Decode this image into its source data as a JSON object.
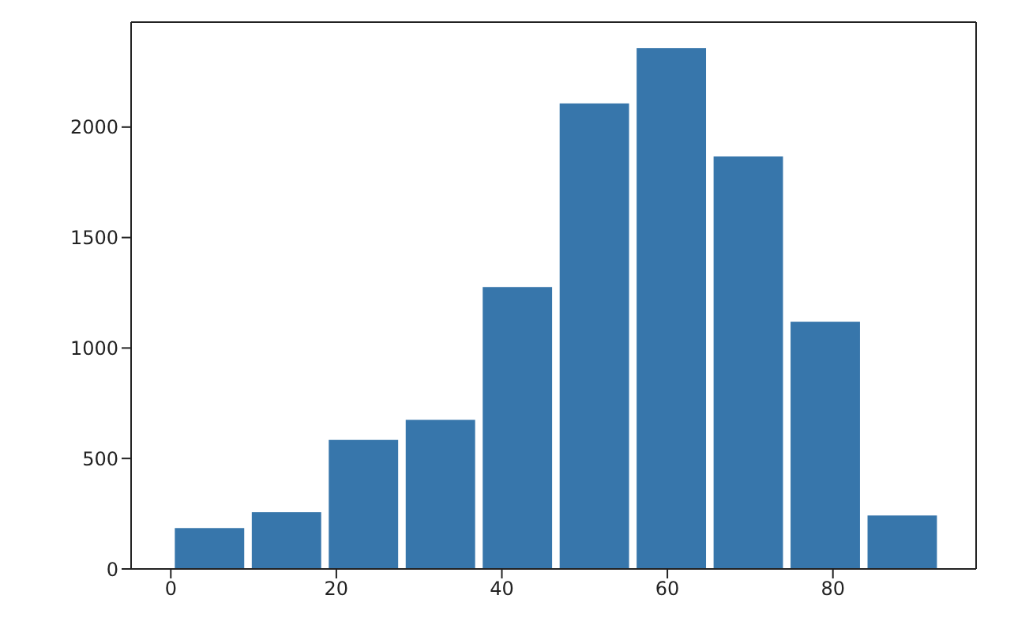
{
  "chart_data": {
    "type": "histogram",
    "bins": [
      0,
      9.3,
      18.6,
      27.9,
      37.2,
      46.5,
      55.8,
      65.1,
      74.4,
      83.7,
      93
    ],
    "values": [
      185,
      257,
      584,
      675,
      1276,
      2107,
      2357,
      1867,
      1119,
      242
    ],
    "color": "#3776ab",
    "xlim": [
      -4.8,
      97.3
    ],
    "xticks": [
      0,
      20,
      40,
      60,
      80
    ],
    "ylim": [
      0,
      2475
    ],
    "yticks": [
      0,
      500,
      1000,
      1500,
      2000
    ],
    "grid": false
  }
}
